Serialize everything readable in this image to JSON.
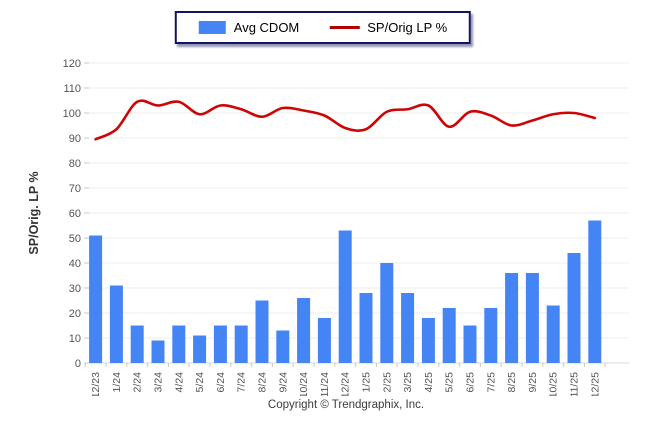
{
  "legend": {
    "bar_label": "Avg CDOM",
    "line_label": "SP/Orig LP %"
  },
  "footer": {
    "copyright": "Copyright © Trendgraphix, Inc."
  },
  "colors": {
    "bar_blue": "#4584F4",
    "line_red": "#CC0505",
    "legend_line_red": "#B00000",
    "legend_border_navy": "#14145E",
    "gridline": "#ededed",
    "baseline": "#d8d8d8",
    "tick_mark": "#c9c9c9",
    "tick_text": "#555555",
    "axis_title_text": "#333333"
  },
  "chart_data": {
    "type": "combo",
    "title": "",
    "xlabel": "",
    "ylabel": "SP/Orig. LP %",
    "ylim": [
      0,
      120
    ],
    "ytick_step": 10,
    "grid": true,
    "legend_position": "top-center",
    "categories": [
      "12/23",
      "1/24",
      "2/24",
      "3/24",
      "4/24",
      "5/24",
      "6/24",
      "7/24",
      "8/24",
      "9/24",
      "10/24",
      "11/24",
      "12/24",
      "1/25",
      "2/25",
      "3/25",
      "4/25",
      "5/25",
      "6/25",
      "7/25",
      "8/25",
      "9/25",
      "10/25",
      "11/25",
      "12/25"
    ],
    "series": [
      {
        "name": "Avg CDOM",
        "type": "bar",
        "color": "#4584F4",
        "values": [
          51,
          31,
          15,
          9,
          15,
          11,
          15,
          15,
          25,
          13,
          26,
          18,
          53,
          28,
          40,
          28,
          18,
          22,
          15,
          22,
          36,
          36,
          23,
          44,
          57
        ]
      },
      {
        "name": "SP/Orig LP %",
        "type": "line",
        "color": "#CC0505",
        "values": [
          89.5,
          93.5,
          104.5,
          103,
          104.5,
          99.5,
          103,
          101.5,
          98.5,
          102,
          101,
          99,
          94,
          93.5,
          100.5,
          101.5,
          103,
          94.5,
          100.5,
          99,
          95,
          97,
          99.5,
          100,
          98
        ]
      }
    ]
  }
}
